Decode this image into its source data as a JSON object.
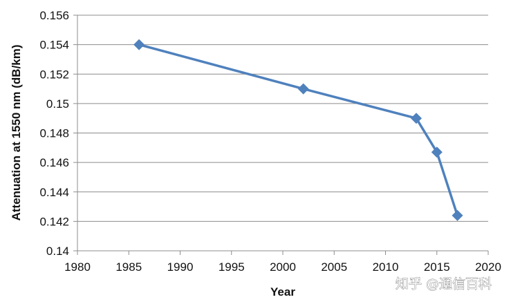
{
  "chart_data": {
    "type": "line",
    "xlabel": "Year",
    "ylabel": "Attenuation at 1550 nm (dB/km)",
    "xlim": [
      1980,
      2020
    ],
    "ylim": [
      0.14,
      0.156
    ],
    "x_ticks": [
      "1980",
      "1985",
      "1990",
      "1995",
      "2000",
      "2005",
      "2010",
      "2015",
      "2020"
    ],
    "y_ticks": [
      "0.14",
      "0.142",
      "0.144",
      "0.146",
      "0.148",
      "0.15",
      "0.152",
      "0.154",
      "0.156"
    ],
    "grid": "horizontal",
    "marker": "diamond",
    "series": [
      {
        "color": "#4f81bd",
        "x": [
          1986,
          2002,
          2013,
          2015,
          2017
        ],
        "y": [
          0.154,
          0.151,
          0.149,
          0.1467,
          0.1424
        ]
      }
    ]
  },
  "watermark": "知乎 @通信百科"
}
